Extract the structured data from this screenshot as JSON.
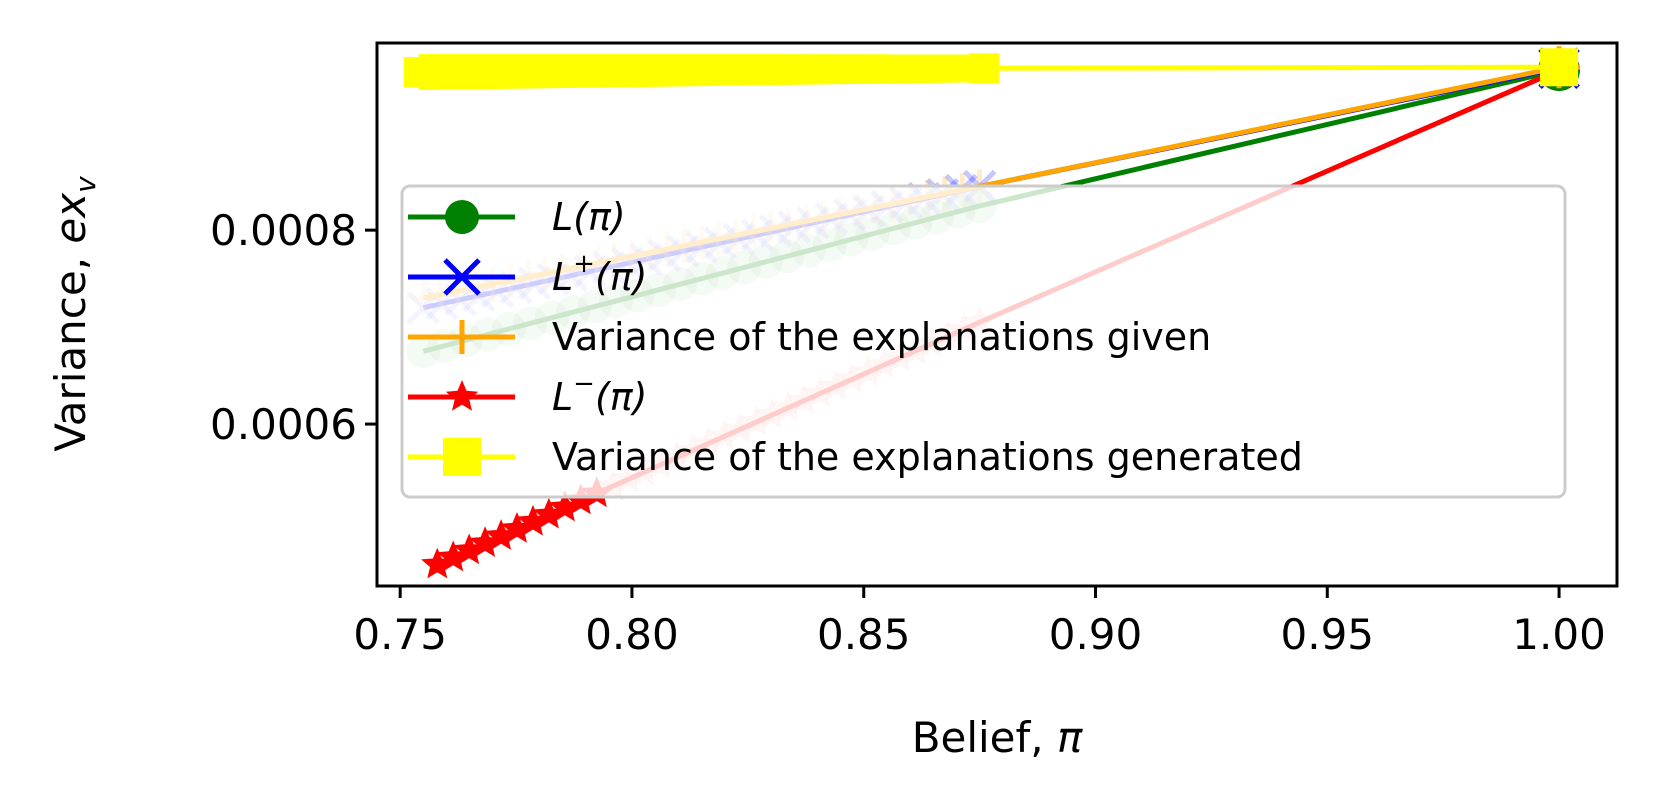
{
  "chart_data": {
    "type": "line",
    "title": "",
    "xlabel": {
      "text": "Belief, ",
      "symbol": "π"
    },
    "ylabel": {
      "text": "Variance, ",
      "symbol": "ex",
      "sub": "v"
    },
    "xlim": [
      0.745,
      1.0125
    ],
    "ylim": [
      0.000433,
      0.000993
    ],
    "x_ticks": [
      0.75,
      0.8,
      0.85,
      0.9,
      0.95,
      1.0
    ],
    "x_tick_labels": [
      "0.75",
      "0.80",
      "0.85",
      "0.90",
      "0.95",
      "1.00"
    ],
    "y_ticks": [
      0.0006,
      0.0008
    ],
    "y_tick_labels": [
      "0.0006",
      "0.0008"
    ],
    "grid": false,
    "legend_position": "center-left",
    "series": [
      {
        "name": "L(π)",
        "legend": {
          "base": "L",
          "sup": "",
          "arg": "(π)"
        },
        "color": "#008000",
        "marker": "circle",
        "points": [
          [
            0.755,
            0.000675
          ],
          [
            0.875,
            0.000825
          ],
          [
            1.0,
            0.000965
          ]
        ]
      },
      {
        "name": "L⁺(π)",
        "legend": {
          "base": "L",
          "sup": "+",
          "arg": "(π)"
        },
        "color": "#0000ff",
        "marker": "x",
        "points": [
          [
            0.755,
            0.00072
          ],
          [
            0.875,
            0.000845
          ],
          [
            1.0,
            0.000967
          ]
        ]
      },
      {
        "name": "Variance of the explanations given",
        "legend": {
          "text": "Variance of the explanations given"
        },
        "color": "#ffa500",
        "marker": "plus",
        "points": [
          [
            0.755,
            0.00073
          ],
          [
            0.875,
            0.000845
          ],
          [
            1.0,
            0.000968
          ]
        ]
      },
      {
        "name": "L⁻(π)",
        "legend": {
          "base": "L",
          "sup": "−",
          "arg": "(π)"
        },
        "color": "#ff0000",
        "marker": "star",
        "points": [
          [
            0.758,
            0.000455
          ],
          [
            0.875,
            0.000705
          ],
          [
            1.0,
            0.000965
          ]
        ]
      },
      {
        "name": "Variance of the explanations generated",
        "legend": {
          "text": "Variance of the explanations generated"
        },
        "color": "#ffff00",
        "marker": "square",
        "points": [
          [
            0.754,
            0.000963
          ],
          [
            0.876,
            0.000967
          ],
          [
            1.0,
            0.000968
          ]
        ]
      }
    ]
  }
}
